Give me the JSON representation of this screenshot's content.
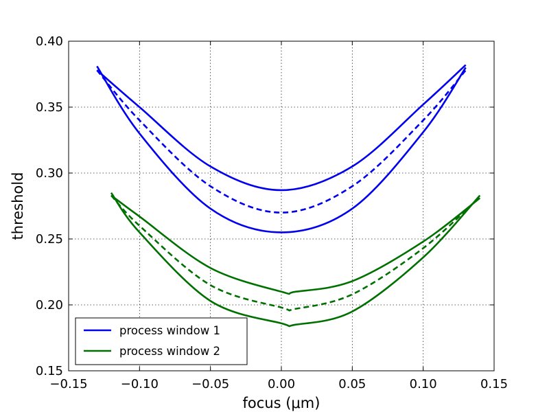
{
  "chart_data": {
    "type": "line",
    "xlabel": "focus (μm)",
    "ylabel": "threshold",
    "xlim": [
      -0.15,
      0.15
    ],
    "ylim": [
      0.15,
      0.4
    ],
    "xticks": [
      "−0.15",
      "−0.10",
      "−0.05",
      "0.00",
      "0.05",
      "0.10",
      "0.15"
    ],
    "yticks": [
      "0.15",
      "0.20",
      "0.25",
      "0.30",
      "0.35",
      "0.40"
    ],
    "grid": true,
    "legend_position": "lower-left",
    "legend": [
      {
        "label": "process window 1",
        "color": "#0000ee"
      },
      {
        "label": "process window 2",
        "color": "#007000"
      }
    ],
    "series": [
      {
        "group": 1,
        "color": "#0000ee",
        "style": "solid",
        "x": [
          -0.13,
          -0.1,
          -0.05,
          0.0,
          0.05,
          0.1,
          0.13
        ],
        "y": [
          0.378,
          0.35,
          0.305,
          0.287,
          0.305,
          0.352,
          0.382
        ]
      },
      {
        "group": 1,
        "color": "#0000ee",
        "style": "dashed",
        "x": [
          -0.13,
          -0.1,
          -0.05,
          0.0,
          0.05,
          0.1,
          0.13
        ],
        "y": [
          0.378,
          0.34,
          0.29,
          0.27,
          0.29,
          0.34,
          0.378
        ]
      },
      {
        "group": 1,
        "color": "#0000ee",
        "style": "solid",
        "x": [
          -0.13,
          -0.1,
          -0.05,
          0.0,
          0.05,
          0.1,
          0.13
        ],
        "y": [
          0.381,
          0.33,
          0.273,
          0.255,
          0.273,
          0.331,
          0.38
        ]
      },
      {
        "group": 2,
        "color": "#007000",
        "style": "solid",
        "x": [
          -0.12,
          -0.1,
          -0.05,
          0.0,
          0.01,
          0.05,
          0.1,
          0.14
        ],
        "y": [
          0.283,
          0.267,
          0.228,
          0.21,
          0.21,
          0.218,
          0.248,
          0.281
        ]
      },
      {
        "group": 2,
        "color": "#007000",
        "style": "dashed",
        "x": [
          -0.12,
          -0.1,
          -0.05,
          0.0,
          0.01,
          0.05,
          0.1,
          0.14
        ],
        "y": [
          0.283,
          0.26,
          0.215,
          0.198,
          0.197,
          0.208,
          0.243,
          0.282
        ]
      },
      {
        "group": 2,
        "color": "#007000",
        "style": "solid",
        "x": [
          -0.12,
          -0.1,
          -0.05,
          0.0,
          0.01,
          0.05,
          0.1,
          0.14
        ],
        "y": [
          0.285,
          0.255,
          0.203,
          0.186,
          0.185,
          0.195,
          0.236,
          0.283
        ]
      }
    ]
  }
}
